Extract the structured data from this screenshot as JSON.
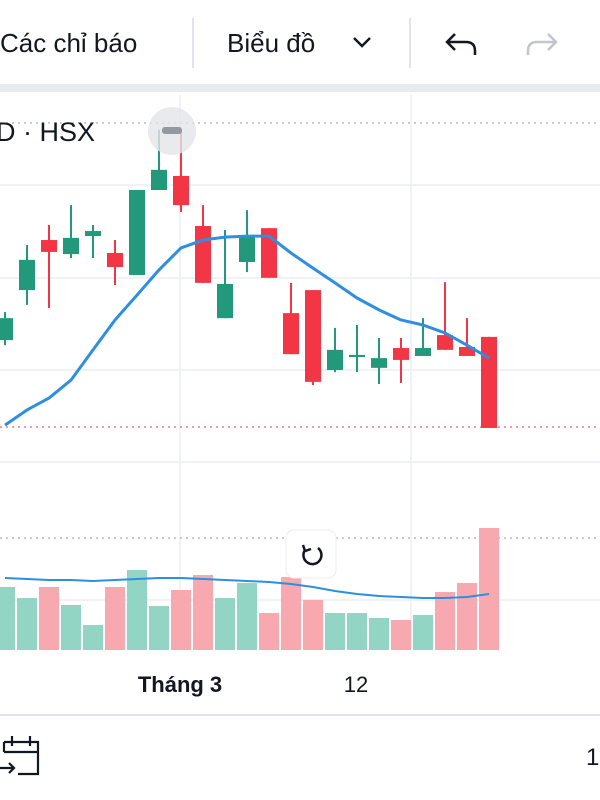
{
  "toolbar": {
    "indicators": "Các chỉ báo",
    "chart_type": "Biểu đồ"
  },
  "symbol_label": "D · HSX",
  "bottom_bar": {
    "range_label": "1"
  },
  "chart_data": {
    "type": "candlestick",
    "categories": [
      null,
      null,
      null,
      null,
      null,
      null,
      null,
      null,
      "Tháng 3",
      null,
      null,
      null,
      null,
      null,
      null,
      null,
      "12",
      null,
      null,
      null,
      null,
      null,
      null
    ],
    "open": [
      33.3,
      47.2,
      61.1,
      57.2,
      62.2,
      57.5,
      51.4,
      75,
      78.9,
      65,
      39.4,
      55,
      64.4,
      40.8,
      47.2,
      25,
      28.6,
      25.6,
      31.1,
      28.9,
      34.7,
      31.4,
      34.2
    ],
    "high": [
      41.1,
      59.7,
      65.3,
      70.8,
      65.3,
      61.1,
      75,
      91.7,
      91.7,
      70.8,
      63.9,
      69.4,
      64.4,
      49.2,
      47.2,
      36.7,
      37.5,
      33.9,
      33.9,
      39.4,
      49.4,
      39.4,
      34.2
    ],
    "low": [
      31.9,
      43.1,
      42.2,
      56.1,
      56.1,
      48.6,
      51.4,
      75,
      68.9,
      49.2,
      39.4,
      52.2,
      50.6,
      29.4,
      20.8,
      24.4,
      24.4,
      21.1,
      21.4,
      28.9,
      30.6,
      28.9,
      8.9
    ],
    "close": [
      39.4,
      55.6,
      57.8,
      61.7,
      63.6,
      53.6,
      75,
      80.6,
      70.8,
      49.2,
      48.9,
      62.5,
      50.6,
      29.4,
      21.7,
      30.6,
      29.2,
      28.3,
      27.8,
      31.1,
      30.6,
      28.9,
      8.9
    ],
    "ma": [
      9.7,
      13.9,
      17.2,
      22.2,
      30.6,
      38.9,
      45.8,
      52.8,
      58.9,
      61.1,
      61.9,
      62.2,
      62.2,
      57.5,
      53.3,
      49.2,
      45,
      41.7,
      38.9,
      37.5,
      35.3,
      31.9,
      28.3
    ],
    "volume": [
      52.5,
      43.3,
      52.5,
      37.5,
      20.8,
      52.5,
      66.7,
      36.7,
      50,
      62.5,
      43.3,
      55.8,
      30.8,
      60.8,
      41.7,
      30.8,
      30.8,
      26.7,
      25,
      29.2,
      48.3,
      55.8,
      101.7
    ],
    "volume_ma": [
      60,
      59.2,
      58.3,
      58.3,
      57.5,
      58.3,
      59.2,
      60,
      60,
      59.2,
      58.3,
      57.5,
      56.7,
      55,
      52.5,
      49.2,
      46.7,
      45,
      44.2,
      43.3,
      43.3,
      44.2,
      46.7
    ],
    "ylim": [
      0,
      100
    ],
    "volume_ylim": [
      0,
      110
    ],
    "up_color": "#22997a",
    "down_color": "#f23645",
    "ma_color": "#2e8fe0",
    "volume_up_color": "#92d5c5",
    "volume_down_color": "#f8a9b0"
  }
}
